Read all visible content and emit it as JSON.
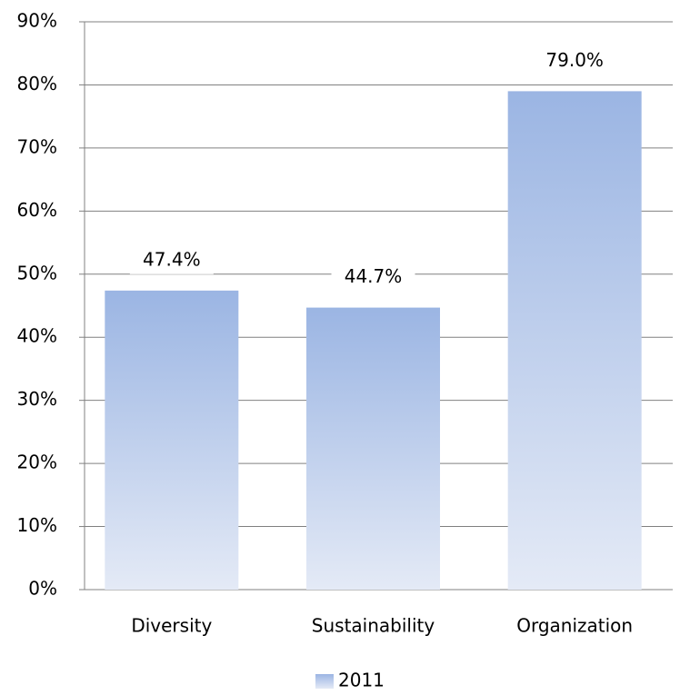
{
  "chart_data": {
    "type": "bar",
    "categories": [
      "Diversity",
      "Sustainability",
      "Organization"
    ],
    "series": [
      {
        "name": "2011",
        "color": "#9bb5e3",
        "values": [
          47.4,
          44.7,
          79.0
        ],
        "value_labels": [
          "47.4%",
          "44.7%",
          "79.0%"
        ]
      }
    ],
    "ylim": [
      0,
      90
    ],
    "yticks": [
      {
        "value": 0,
        "label": "0%"
      },
      {
        "value": 10,
        "label": "10%"
      },
      {
        "value": 20,
        "label": "20%"
      },
      {
        "value": 30,
        "label": "30%"
      },
      {
        "value": 40,
        "label": "40%"
      },
      {
        "value": 50,
        "label": "50%"
      },
      {
        "value": 60,
        "label": "60%"
      },
      {
        "value": 70,
        "label": "70%"
      },
      {
        "value": 80,
        "label": "80%"
      },
      {
        "value": 90,
        "label": "90%"
      }
    ],
    "grid": true,
    "legend": "bottom"
  }
}
